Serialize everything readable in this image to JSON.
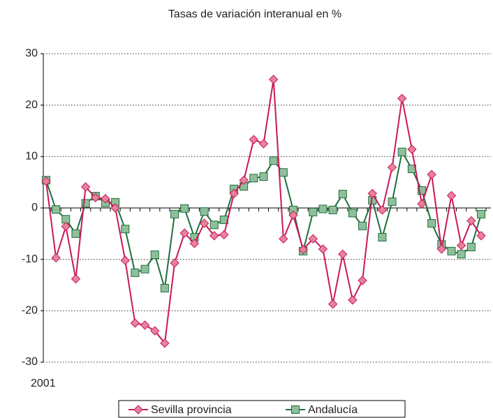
{
  "chart_data": {
    "type": "line",
    "title": "Tasas de variación  interanual  en %",
    "categories": [
      "2001",
      null,
      null,
      null,
      null,
      null,
      null,
      null,
      null,
      null,
      null,
      null,
      null,
      null,
      null,
      null,
      null,
      null,
      null,
      null,
      null,
      null,
      null,
      null,
      null,
      null,
      null,
      null,
      null,
      null,
      null,
      null,
      null,
      null,
      null,
      null,
      null,
      null,
      null,
      null,
      null,
      null,
      null,
      null,
      null
    ],
    "series": [
      {
        "name": "Sevilla provincia",
        "color": "#c8185a",
        "marker_color": "#e8829a",
        "marker": "diamond",
        "values": [
          5.2,
          -9.7,
          -3.6,
          -13.8,
          4.1,
          2.0,
          1.8,
          0,
          -10.2,
          -22.4,
          -22.8,
          -23.9,
          -26.3,
          -10.7,
          -4.9,
          -6.9,
          -3.0,
          -5.4,
          -5.2,
          2.8,
          5.4,
          13.3,
          12.5,
          25,
          -6.0,
          -1.4,
          -8.1,
          -6.0,
          -8.0,
          -18.7,
          -9.0,
          -17.9,
          -14.1,
          2.8,
          -0.4,
          7.9,
          21.3,
          11.4,
          0.8,
          6.5,
          -8.0,
          2.4,
          -7.3,
          -2.5,
          -5.4
        ]
      },
      {
        "name": "Andalucía",
        "color": "#1e6e3c",
        "marker_color": "#8fbf9a",
        "marker": "square",
        "values": [
          5.4,
          -0.3,
          -2.2,
          -5.0,
          0.9,
          2.3,
          1.0,
          1.1,
          -4.1,
          -12.6,
          -11.9,
          -9.1,
          -15.6,
          -1.2,
          -0.1,
          -5.7,
          -0.7,
          -3.3,
          -2.3,
          3.7,
          4.2,
          5.8,
          6.1,
          9.2,
          6.9,
          -0.4,
          -8.4,
          -0.8,
          -0.2,
          -0.4,
          2.7,
          -1.0,
          -3.5,
          1.5,
          -5.7,
          1.2,
          10.9,
          7.6,
          3.4,
          -3.0,
          -7.1,
          -8.4,
          -9.0,
          -7.6,
          -1.2
        ]
      }
    ],
    "ylim": [
      -30,
      30
    ],
    "yticks": [
      -30,
      -20,
      -10,
      0,
      10,
      20,
      30
    ],
    "grid": true,
    "legend": "bottom"
  }
}
